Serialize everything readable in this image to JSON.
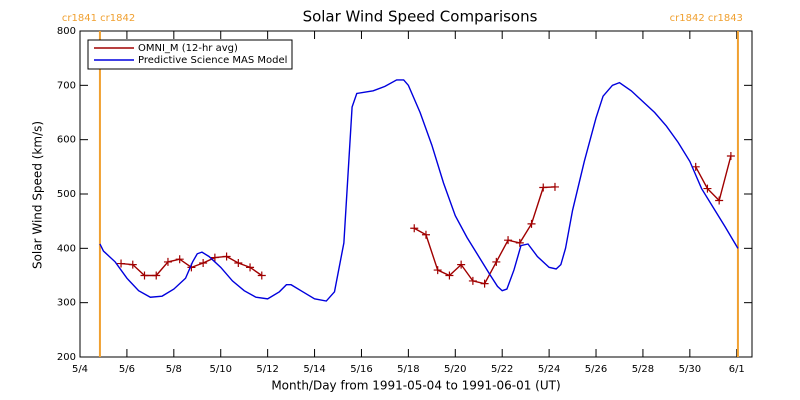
{
  "chart_data": {
    "type": "line",
    "title": "Solar Wind Speed Comparisons",
    "xlabel": "Month/Day from 1991-05-04 to 1991-06-01 (UT)",
    "ylabel": "Solar Wind Speed (km/s)",
    "xlim": [
      0,
      28.65
    ],
    "ylim": [
      200,
      800
    ],
    "yticks": [
      200,
      300,
      400,
      500,
      600,
      700,
      800
    ],
    "xticks": [
      {
        "value": 0,
        "label": "5/4"
      },
      {
        "value": 2,
        "label": "5/6"
      },
      {
        "value": 4,
        "label": "5/8"
      },
      {
        "value": 6,
        "label": "5/10"
      },
      {
        "value": 8,
        "label": "5/12"
      },
      {
        "value": 10,
        "label": "5/14"
      },
      {
        "value": 12,
        "label": "5/16"
      },
      {
        "value": 14,
        "label": "5/18"
      },
      {
        "value": 16,
        "label": "5/20"
      },
      {
        "value": 18,
        "label": "5/22"
      },
      {
        "value": 20,
        "label": "5/24"
      },
      {
        "value": 22,
        "label": "5/26"
      },
      {
        "value": 24,
        "label": "5/28"
      },
      {
        "value": 26,
        "label": "5/30"
      },
      {
        "value": 28,
        "label": "6/1"
      }
    ],
    "legend": "upper left",
    "annotations": [
      {
        "x": 0.85,
        "label": "cr1841 cr1842",
        "color": "#f0a030"
      },
      {
        "x": 28.05,
        "label": "cr1842 cr1843",
        "color": "#f0a030"
      }
    ],
    "series": [
      {
        "name": "OMNI_M (12-hr avg)",
        "color": "#a00000",
        "marker": "+",
        "x": [
          1.75,
          2.25,
          2.75,
          3.25,
          3.75,
          4.25,
          4.75,
          5.25,
          5.75,
          6.25,
          6.75,
          7.25,
          7.75,
          8.25,
          8.75,
          9.25,
          9.75,
          10.25,
          10.75,
          11.25,
          11.75,
          12.25,
          12.75,
          13.25,
          13.75,
          14.25,
          14.75,
          15.25,
          15.75,
          16.25,
          16.75,
          17.25,
          17.75,
          18.25,
          18.75,
          19.25,
          19.75,
          20.25,
          20.75,
          21.25,
          21.75,
          22.25,
          22.75,
          23.25,
          23.75,
          24.25,
          24.75,
          25.25,
          25.75,
          26.25,
          26.75,
          27.25,
          27.75
        ],
        "values": [
          372,
          370,
          350,
          350,
          375,
          380,
          365,
          373,
          383,
          385,
          373,
          365,
          350,
          null,
          null,
          null,
          null,
          null,
          null,
          null,
          null,
          null,
          null,
          null,
          null,
          437,
          425,
          360,
          350,
          370,
          340,
          335,
          375,
          415,
          410,
          445,
          512,
          513,
          null,
          null,
          null,
          null,
          null,
          null,
          null,
          null,
          null,
          null,
          null,
          550,
          510,
          488,
          570
        ]
      },
      {
        "name": "Predictive Science MAS Model",
        "color": "#0000dd",
        "x": [
          0.85,
          1,
          1.5,
          2,
          2.5,
          3,
          3.5,
          4,
          4.5,
          4.8,
          5,
          5.2,
          5.5,
          6,
          6.5,
          7,
          7.5,
          8,
          8.5,
          8.8,
          9,
          9.5,
          10,
          10.5,
          10.85,
          11.25,
          11.6,
          11.8,
          12.5,
          13,
          13.5,
          13.8,
          14,
          14.5,
          15,
          15.5,
          16,
          16.5,
          17,
          17.5,
          17.8,
          18,
          18.2,
          18.5,
          18.8,
          19.1,
          19.5,
          20,
          20.3,
          20.5,
          20.7,
          21,
          21.5,
          22,
          22.3,
          22.7,
          23,
          23.5,
          24,
          24.5,
          25,
          25.5,
          26,
          26.5,
          27,
          27.5,
          28.05
        ],
        "values": [
          408,
          395,
          375,
          345,
          322,
          310,
          312,
          325,
          345,
          375,
          390,
          393,
          385,
          365,
          340,
          322,
          310,
          307,
          320,
          333,
          333,
          320,
          307,
          303,
          320,
          410,
          660,
          685,
          690,
          698,
          710,
          710,
          700,
          650,
          590,
          520,
          460,
          420,
          385,
          350,
          330,
          322,
          325,
          360,
          405,
          408,
          385,
          365,
          362,
          370,
          400,
          470,
          560,
          640,
          680,
          700,
          705,
          690,
          670,
          650,
          625,
          595,
          560,
          510,
          475,
          440,
          400
        ]
      }
    ]
  }
}
